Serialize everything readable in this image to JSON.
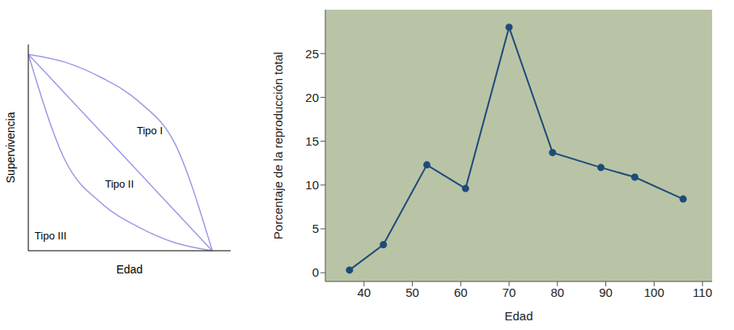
{
  "chart_data": [
    {
      "type": "line",
      "x_label": "Edad",
      "y_label": "Supervivencia",
      "x": [
        0,
        0.2,
        0.4,
        0.6,
        0.8,
        1
      ],
      "series": [
        {
          "name": "Tipo I",
          "color": "#9a9ae6",
          "values": [
            1,
            0.96,
            0.88,
            0.76,
            0.54,
            0
          ]
        },
        {
          "name": "Tipo II",
          "color": "#9a9ae6",
          "values": [
            1,
            0.8,
            0.6,
            0.4,
            0.2,
            0
          ]
        },
        {
          "name": "Tipo III",
          "color": "#9a9ae6",
          "values": [
            1,
            0.46,
            0.24,
            0.12,
            0.04,
            0
          ]
        }
      ],
      "xlim": [
        0,
        1.1
      ],
      "ylim": [
        0,
        1.05
      ],
      "tick_labels": false,
      "marker": "none"
    },
    {
      "type": "line",
      "x_label": "Edad",
      "y_label": "Porcentaje de la reproducción total",
      "x": [
        37,
        44,
        53,
        61,
        70,
        79,
        89,
        96,
        106
      ],
      "values": [
        0.3,
        3.2,
        12.3,
        9.6,
        28,
        13.7,
        12,
        10.9,
        8.4
      ],
      "color": "#1f4b7a",
      "marker": "o",
      "xlim": [
        32,
        112
      ],
      "ylim": [
        -1,
        30
      ],
      "xticks": [
        40,
        50,
        60,
        70,
        80,
        90,
        100,
        110
      ],
      "yticks": [
        0,
        5,
        10,
        15,
        20,
        25
      ]
    }
  ]
}
